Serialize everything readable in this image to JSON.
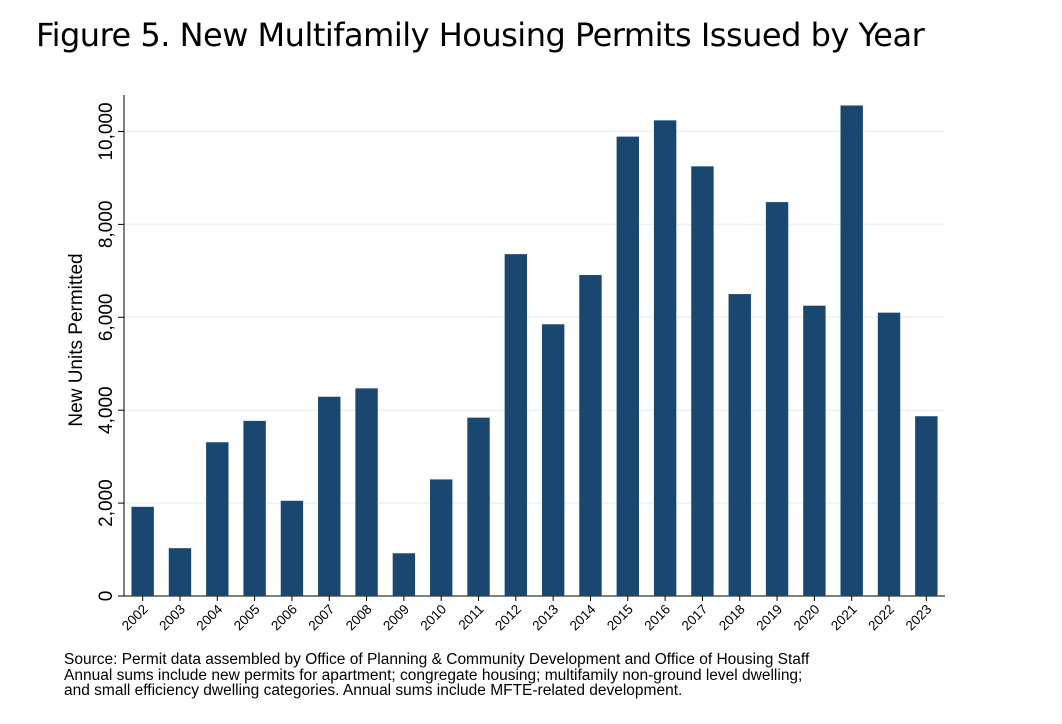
{
  "title": "Figure 5. New Multifamily Housing Permits Issued by Year",
  "chart_data": {
    "type": "bar",
    "title": "",
    "xlabel": "",
    "ylabel": "New Units Permitted",
    "categories": [
      "2002",
      "2003",
      "2004",
      "2005",
      "2006",
      "2007",
      "2008",
      "2009",
      "2010",
      "2011",
      "2012",
      "2013",
      "2014",
      "2015",
      "2016",
      "2017",
      "2018",
      "2019",
      "2020",
      "2021",
      "2022",
      "2023"
    ],
    "values": [
      1920,
      1030,
      3310,
      3770,
      2050,
      4290,
      4470,
      920,
      2510,
      3840,
      7360,
      5850,
      6910,
      9890,
      10240,
      9250,
      6500,
      8480,
      6250,
      10560,
      6100,
      3870
    ],
    "yticks": [
      0,
      2000,
      4000,
      6000,
      8000,
      10000
    ],
    "ytick_labels": [
      "0",
      "2,000",
      "4,000",
      "6,000",
      "8,000",
      "10,000"
    ],
    "ylim": [
      0,
      11000
    ],
    "grid": true,
    "bar_color": "#1a476f",
    "grid_color": "#eaf2f3"
  },
  "source_note": [
    "Source: Permit data assembled by Office of Planning & Community Development and Office of Housing Staff",
    "Annual sums include new permits for apartment; congregate housing; multifamily non-ground level dwelling;",
    "and small efficiency dwelling categories. Annual sums include MFTE-related development."
  ]
}
